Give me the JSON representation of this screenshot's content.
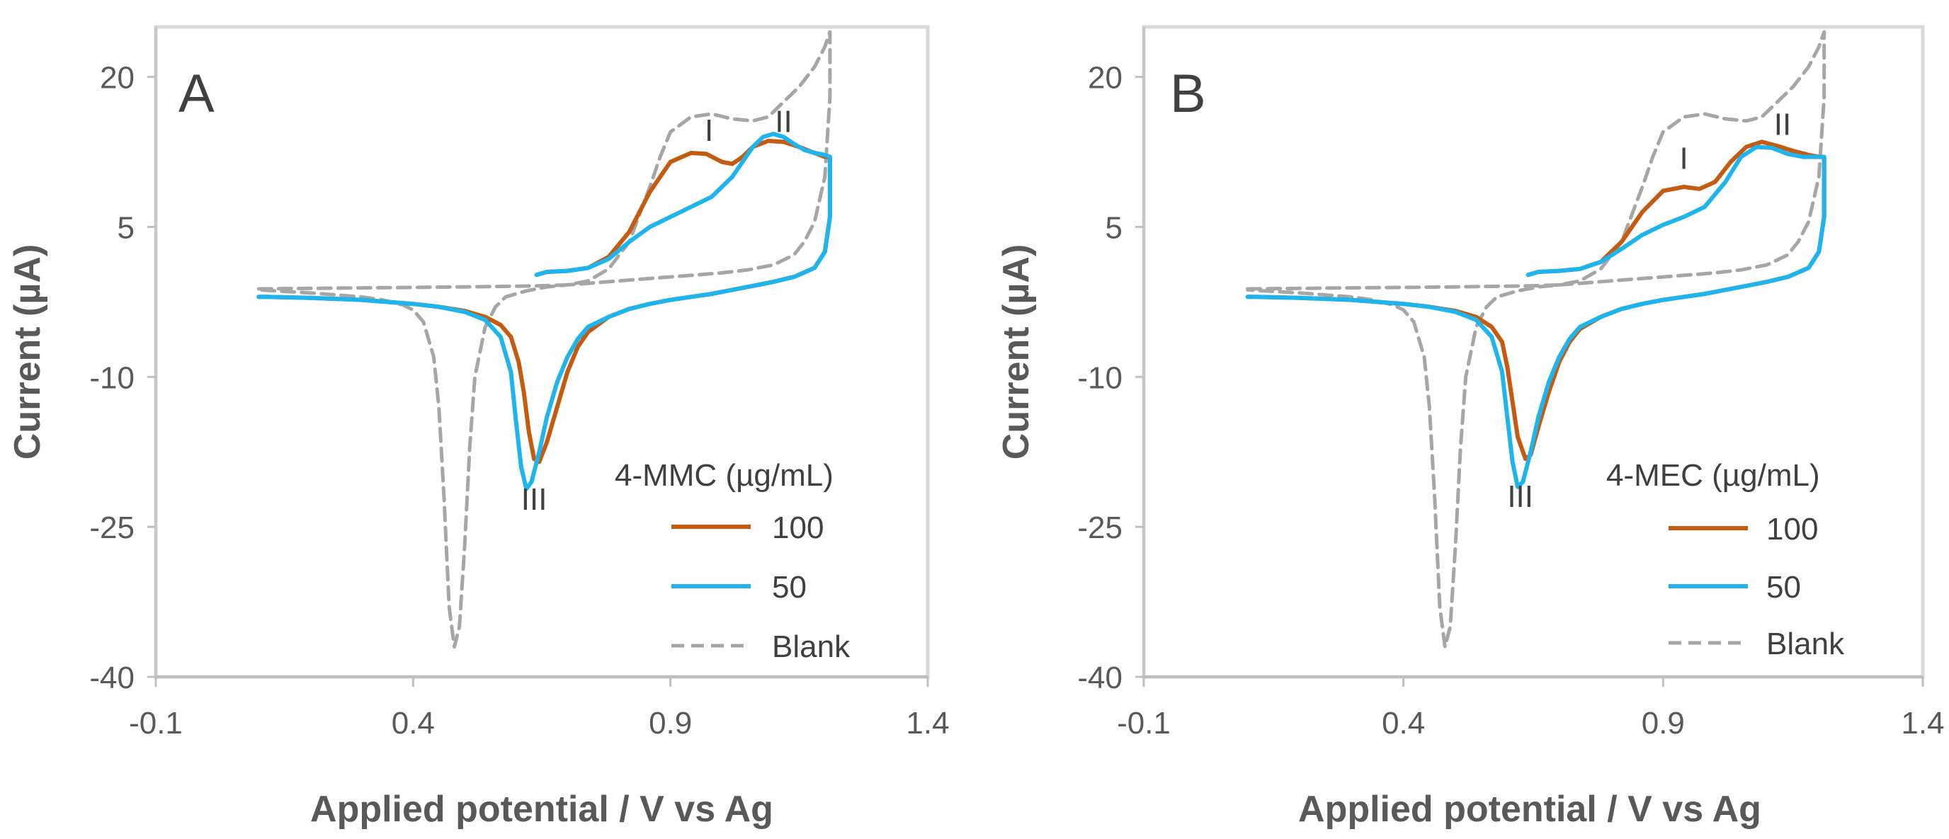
{
  "chart_data": [
    {
      "type": "line",
      "panel": "A",
      "xlabel": "Applied potential / V vs Ag",
      "ylabel": "Current (µA)",
      "xlim": [
        -0.1,
        1.4
      ],
      "ylim": [
        -40,
        25
      ],
      "xticks": [
        "-0.1",
        "0.4",
        "0.9",
        "1.4"
      ],
      "xtick_values": [
        -0.1,
        0.4,
        0.9,
        1.4
      ],
      "yticks": [
        "20",
        "5",
        "-10",
        "-25",
        "-40"
      ],
      "ytick_values": [
        20,
        5,
        -10,
        -25,
        -40
      ],
      "legend_title": "4-MMC (µg/mL)",
      "legend_position": "bottom-right",
      "peak_labels": [
        {
          "text": "I",
          "x": 0.975,
          "y": 13.6
        },
        {
          "text": "II",
          "x": 1.12,
          "y": 14.5
        },
        {
          "text": "III",
          "x": 0.635,
          "y": -23.3
        }
      ],
      "series": [
        {
          "name": "100",
          "color": "#C55A11",
          "dash": false,
          "x": [
            0.64,
            0.66,
            0.7,
            0.74,
            0.78,
            0.82,
            0.86,
            0.9,
            0.94,
            0.97,
            1.0,
            1.02,
            1.04,
            1.06,
            1.09,
            1.12,
            1.15,
            1.18,
            1.19,
            1.2,
            1.21,
            1.21,
            1.2,
            1.18,
            1.14,
            1.1,
            1.06,
            1.02,
            0.98,
            0.94,
            0.9,
            0.86,
            0.82,
            0.78,
            0.74,
            0.72,
            0.7,
            0.68,
            0.66,
            0.645,
            0.635,
            0.625,
            0.615,
            0.605,
            0.59,
            0.57,
            0.54,
            0.5,
            0.45,
            0.4,
            0.3,
            0.2,
            0.12,
            0.1
          ],
          "y": [
            0.2,
            0.5,
            0.6,
            0.9,
            2.0,
            4.5,
            8.5,
            11.5,
            12.4,
            12.3,
            11.5,
            11.3,
            12.0,
            13.0,
            13.6,
            13.5,
            13.0,
            12.4,
            12.2,
            12.0,
            12.0,
            6.0,
            2.5,
            0.9,
            0.0,
            -0.5,
            -0.9,
            -1.3,
            -1.7,
            -2.0,
            -2.3,
            -2.7,
            -3.2,
            -4.0,
            -5.5,
            -7.0,
            -9.5,
            -13.0,
            -16.5,
            -18.5,
            -18.2,
            -15.5,
            -11.5,
            -8.5,
            -6.0,
            -4.8,
            -4.0,
            -3.4,
            -3.0,
            -2.7,
            -2.3,
            -2.1,
            -2.0,
            -2.0
          ]
        },
        {
          "name": "50",
          "color": "#1EB5EE",
          "dash": false,
          "x": [
            0.64,
            0.66,
            0.7,
            0.74,
            0.78,
            0.82,
            0.86,
            0.9,
            0.94,
            0.98,
            1.02,
            1.04,
            1.06,
            1.08,
            1.1,
            1.12,
            1.14,
            1.16,
            1.18,
            1.2,
            1.21,
            1.21,
            1.2,
            1.18,
            1.14,
            1.1,
            1.06,
            1.02,
            0.98,
            0.94,
            0.9,
            0.86,
            0.82,
            0.78,
            0.74,
            0.72,
            0.7,
            0.68,
            0.66,
            0.645,
            0.63,
            0.62,
            0.61,
            0.6,
            0.59,
            0.57,
            0.54,
            0.5,
            0.45,
            0.4,
            0.3,
            0.2,
            0.12,
            0.1
          ],
          "y": [
            0.2,
            0.5,
            0.6,
            0.9,
            1.8,
            3.5,
            5.0,
            6.0,
            7.0,
            8.0,
            10.0,
            11.5,
            13.0,
            14.0,
            14.3,
            14.0,
            13.3,
            12.7,
            12.4,
            12.2,
            12.0,
            6.0,
            2.5,
            0.9,
            0.0,
            -0.5,
            -0.9,
            -1.3,
            -1.7,
            -2.0,
            -2.3,
            -2.7,
            -3.2,
            -4.0,
            -5.0,
            -6.2,
            -8.0,
            -10.5,
            -14.0,
            -17.5,
            -20.5,
            -21.2,
            -19.0,
            -14.5,
            -9.5,
            -6.0,
            -4.3,
            -3.5,
            -3.0,
            -2.7,
            -2.3,
            -2.1,
            -2.0,
            -2.0
          ]
        },
        {
          "name": "Blank",
          "color": "#A6A6A6",
          "dash": true,
          "x": [
            0.1,
            0.3,
            0.5,
            0.64,
            0.7,
            0.74,
            0.78,
            0.82,
            0.86,
            0.88,
            0.9,
            0.94,
            0.98,
            1.02,
            1.06,
            1.09,
            1.12,
            1.15,
            1.18,
            1.2,
            1.21,
            1.21,
            1.2,
            1.18,
            1.16,
            1.14,
            1.1,
            1.05,
            1.0,
            0.95,
            0.9,
            0.85,
            0.8,
            0.75,
            0.7,
            0.66,
            0.62,
            0.58,
            0.56,
            0.54,
            0.52,
            0.51,
            0.5,
            0.49,
            0.48,
            0.47,
            0.46,
            0.45,
            0.44,
            0.42,
            0.4,
            0.38,
            0.34,
            0.3,
            0.2,
            0.1
          ],
          "y": [
            -1.2,
            -1.1,
            -1.0,
            -0.9,
            -0.8,
            -0.4,
            0.8,
            3.5,
            9.0,
            12.0,
            14.5,
            16.0,
            16.3,
            15.8,
            15.6,
            16.0,
            17.5,
            19.0,
            21.0,
            23.0,
            24.5,
            18.0,
            10.0,
            5.5,
            3.5,
            2.2,
            1.2,
            0.7,
            0.4,
            0.2,
            0.0,
            -0.2,
            -0.4,
            -0.6,
            -0.8,
            -1.0,
            -1.4,
            -2.0,
            -3.0,
            -5.0,
            -10.0,
            -17.0,
            -27.0,
            -35.0,
            -37.0,
            -33.0,
            -22.0,
            -13.0,
            -8.0,
            -4.5,
            -3.3,
            -2.8,
            -2.3,
            -2.0,
            -1.6,
            -1.3
          ]
        }
      ]
    },
    {
      "type": "line",
      "panel": "B",
      "xlabel": "Applied potential / V vs Ag",
      "ylabel": "Current (µA)",
      "xlim": [
        -0.1,
        1.4
      ],
      "ylim": [
        -40,
        25
      ],
      "xticks": [
        "-0.1",
        "0.4",
        "0.9",
        "1.4"
      ],
      "xtick_values": [
        -0.1,
        0.4,
        0.9,
        1.4
      ],
      "yticks": [
        "20",
        "5",
        "-10",
        "-25",
        "-40"
      ],
      "ytick_values": [
        20,
        5,
        -10,
        -25,
        -40
      ],
      "legend_title": "4-MEC (µg/mL)",
      "legend_position": "bottom-right",
      "peak_labels": [
        {
          "text": "I",
          "x": 0.94,
          "y": 10.8
        },
        {
          "text": "II",
          "x": 1.13,
          "y": 14.2
        },
        {
          "text": "III",
          "x": 0.625,
          "y": -23.0
        }
      ],
      "series": [
        {
          "name": "100",
          "color": "#C55A11",
          "dash": false,
          "x": [
            0.64,
            0.66,
            0.7,
            0.74,
            0.78,
            0.82,
            0.86,
            0.9,
            0.94,
            0.97,
            1.0,
            1.03,
            1.06,
            1.09,
            1.12,
            1.15,
            1.18,
            1.2,
            1.21,
            1.21,
            1.2,
            1.18,
            1.14,
            1.1,
            1.06,
            1.02,
            0.98,
            0.94,
            0.9,
            0.86,
            0.82,
            0.78,
            0.74,
            0.72,
            0.7,
            0.68,
            0.66,
            0.645,
            0.635,
            0.62,
            0.61,
            0.6,
            0.59,
            0.57,
            0.54,
            0.5,
            0.45,
            0.4,
            0.3,
            0.2,
            0.12,
            0.1
          ],
          "y": [
            0.2,
            0.5,
            0.6,
            0.8,
            1.5,
            3.5,
            6.5,
            8.6,
            9.0,
            8.8,
            9.5,
            11.5,
            13.0,
            13.5,
            13.1,
            12.6,
            12.2,
            12.0,
            12.0,
            6.0,
            2.5,
            0.9,
            0.0,
            -0.5,
            -0.9,
            -1.3,
            -1.7,
            -2.0,
            -2.3,
            -2.7,
            -3.2,
            -4.0,
            -5.2,
            -6.5,
            -8.5,
            -11.5,
            -15.0,
            -17.8,
            -18.2,
            -16.0,
            -12.5,
            -9.0,
            -6.5,
            -5.0,
            -4.0,
            -3.4,
            -3.0,
            -2.7,
            -2.3,
            -2.1,
            -2.0,
            -2.0
          ]
        },
        {
          "name": "50",
          "color": "#1EB5EE",
          "dash": false,
          "x": [
            0.64,
            0.66,
            0.7,
            0.74,
            0.78,
            0.82,
            0.86,
            0.9,
            0.94,
            0.98,
            1.02,
            1.05,
            1.08,
            1.11,
            1.14,
            1.17,
            1.2,
            1.21,
            1.21,
            1.2,
            1.18,
            1.14,
            1.1,
            1.06,
            1.02,
            0.98,
            0.94,
            0.9,
            0.86,
            0.82,
            0.78,
            0.74,
            0.72,
            0.7,
            0.68,
            0.66,
            0.645,
            0.63,
            0.62,
            0.61,
            0.6,
            0.59,
            0.57,
            0.54,
            0.5,
            0.45,
            0.4,
            0.3,
            0.2,
            0.12,
            0.1
          ],
          "y": [
            0.2,
            0.5,
            0.6,
            0.8,
            1.5,
            2.8,
            4.2,
            5.2,
            6.0,
            7.0,
            9.5,
            12.0,
            13.0,
            12.9,
            12.3,
            12.0,
            12.0,
            12.0,
            6.0,
            2.5,
            0.9,
            0.0,
            -0.5,
            -0.9,
            -1.3,
            -1.7,
            -2.0,
            -2.3,
            -2.7,
            -3.2,
            -4.0,
            -5.0,
            -6.2,
            -8.0,
            -10.5,
            -14.0,
            -17.5,
            -20.5,
            -21.0,
            -18.5,
            -14.0,
            -9.5,
            -6.0,
            -4.3,
            -3.5,
            -3.0,
            -2.7,
            -2.3,
            -2.1,
            -2.0,
            -2.0
          ]
        },
        {
          "name": "Blank",
          "color": "#A6A6A6",
          "dash": true,
          "x": [
            0.1,
            0.3,
            0.5,
            0.64,
            0.7,
            0.74,
            0.78,
            0.82,
            0.86,
            0.88,
            0.9,
            0.94,
            0.98,
            1.02,
            1.06,
            1.09,
            1.12,
            1.15,
            1.18,
            1.2,
            1.21,
            1.21,
            1.2,
            1.18,
            1.16,
            1.14,
            1.1,
            1.05,
            1.0,
            0.95,
            0.9,
            0.85,
            0.8,
            0.75,
            0.7,
            0.66,
            0.62,
            0.58,
            0.56,
            0.54,
            0.52,
            0.51,
            0.5,
            0.49,
            0.48,
            0.47,
            0.46,
            0.45,
            0.44,
            0.42,
            0.4,
            0.38,
            0.34,
            0.3,
            0.2,
            0.1
          ],
          "y": [
            -1.2,
            -1.1,
            -1.0,
            -0.9,
            -0.8,
            -0.4,
            0.8,
            3.5,
            9.0,
            12.0,
            14.5,
            16.0,
            16.3,
            15.8,
            15.6,
            16.0,
            17.5,
            19.0,
            21.0,
            23.0,
            24.5,
            18.0,
            10.0,
            5.5,
            3.5,
            2.2,
            1.2,
            0.7,
            0.4,
            0.2,
            0.0,
            -0.2,
            -0.4,
            -0.6,
            -0.8,
            -1.0,
            -1.4,
            -2.0,
            -3.0,
            -5.0,
            -10.0,
            -17.0,
            -27.0,
            -35.0,
            -37.0,
            -33.0,
            -22.0,
            -13.0,
            -8.0,
            -4.5,
            -3.3,
            -2.8,
            -2.3,
            -2.0,
            -1.6,
            -1.3
          ]
        }
      ]
    }
  ]
}
